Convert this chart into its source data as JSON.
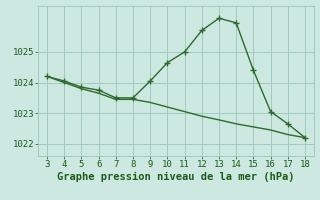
{
  "x": [
    3,
    4,
    5,
    6,
    7,
    8,
    9,
    10,
    11,
    12,
    13,
    14,
    15,
    16,
    17,
    18
  ],
  "line1": [
    1024.2,
    1024.05,
    1023.85,
    1023.75,
    1023.5,
    1023.5,
    1024.05,
    1024.65,
    1025.0,
    1025.7,
    1026.1,
    1025.95,
    1024.4,
    1023.05,
    1022.65,
    1022.2
  ],
  "line2": [
    1024.2,
    1024.0,
    1023.8,
    1023.65,
    1023.45,
    1023.45,
    1023.35,
    1023.2,
    1023.05,
    1022.9,
    1022.78,
    1022.65,
    1022.55,
    1022.45,
    1022.3,
    1022.2
  ],
  "line_color": "#2d6a2d",
  "marker": "+",
  "markersize": 4,
  "linewidth": 1.0,
  "bg_color": "#cde8e0",
  "grid_color": "#9dc4bc",
  "xlabel": "Graphe pression niveau de la mer (hPa)",
  "xlabel_color": "#1a5c1a",
  "xlabel_fontsize": 7.5,
  "xticks": [
    3,
    4,
    5,
    6,
    7,
    8,
    9,
    10,
    11,
    12,
    13,
    14,
    15,
    16,
    17,
    18
  ],
  "yticks": [
    1022,
    1023,
    1024,
    1025
  ],
  "ylim": [
    1021.6,
    1026.5
  ],
  "xlim": [
    2.5,
    18.5
  ],
  "tick_fontsize": 6.5,
  "tick_color": "#1a5c1a"
}
